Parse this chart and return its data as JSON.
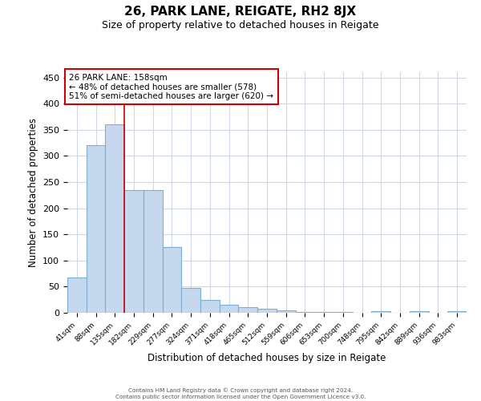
{
  "title1": "26, PARK LANE, REIGATE, RH2 8JX",
  "title2": "Size of property relative to detached houses in Reigate",
  "xlabel": "Distribution of detached houses by size in Reigate",
  "ylabel": "Number of detached properties",
  "categories": [
    "41sqm",
    "88sqm",
    "135sqm",
    "182sqm",
    "229sqm",
    "277sqm",
    "324sqm",
    "371sqm",
    "418sqm",
    "465sqm",
    "512sqm",
    "559sqm",
    "606sqm",
    "653sqm",
    "700sqm",
    "748sqm",
    "795sqm",
    "842sqm",
    "889sqm",
    "936sqm",
    "983sqm"
  ],
  "values": [
    67,
    320,
    360,
    235,
    235,
    125,
    48,
    25,
    15,
    10,
    7,
    5,
    2,
    2,
    2,
    0,
    3,
    0,
    3,
    0,
    3
  ],
  "bar_color": "#c5d8ed",
  "bar_edge_color": "#7bafd4",
  "annotation_text": "26 PARK LANE: 158sqm\n← 48% of detached houses are smaller (578)\n51% of semi-detached houses are larger (620) →",
  "vline_x": 2.5,
  "vline_color": "#cc0000",
  "background_color": "#ffffff",
  "grid_color": "#d0d8e8",
  "footer_text": "Contains HM Land Registry data © Crown copyright and database right 2024.\nContains public sector information licensed under the Open Government Licence v3.0.",
  "ylim": [
    0,
    460
  ],
  "yticks": [
    0,
    50,
    100,
    150,
    200,
    250,
    300,
    350,
    400,
    450
  ]
}
